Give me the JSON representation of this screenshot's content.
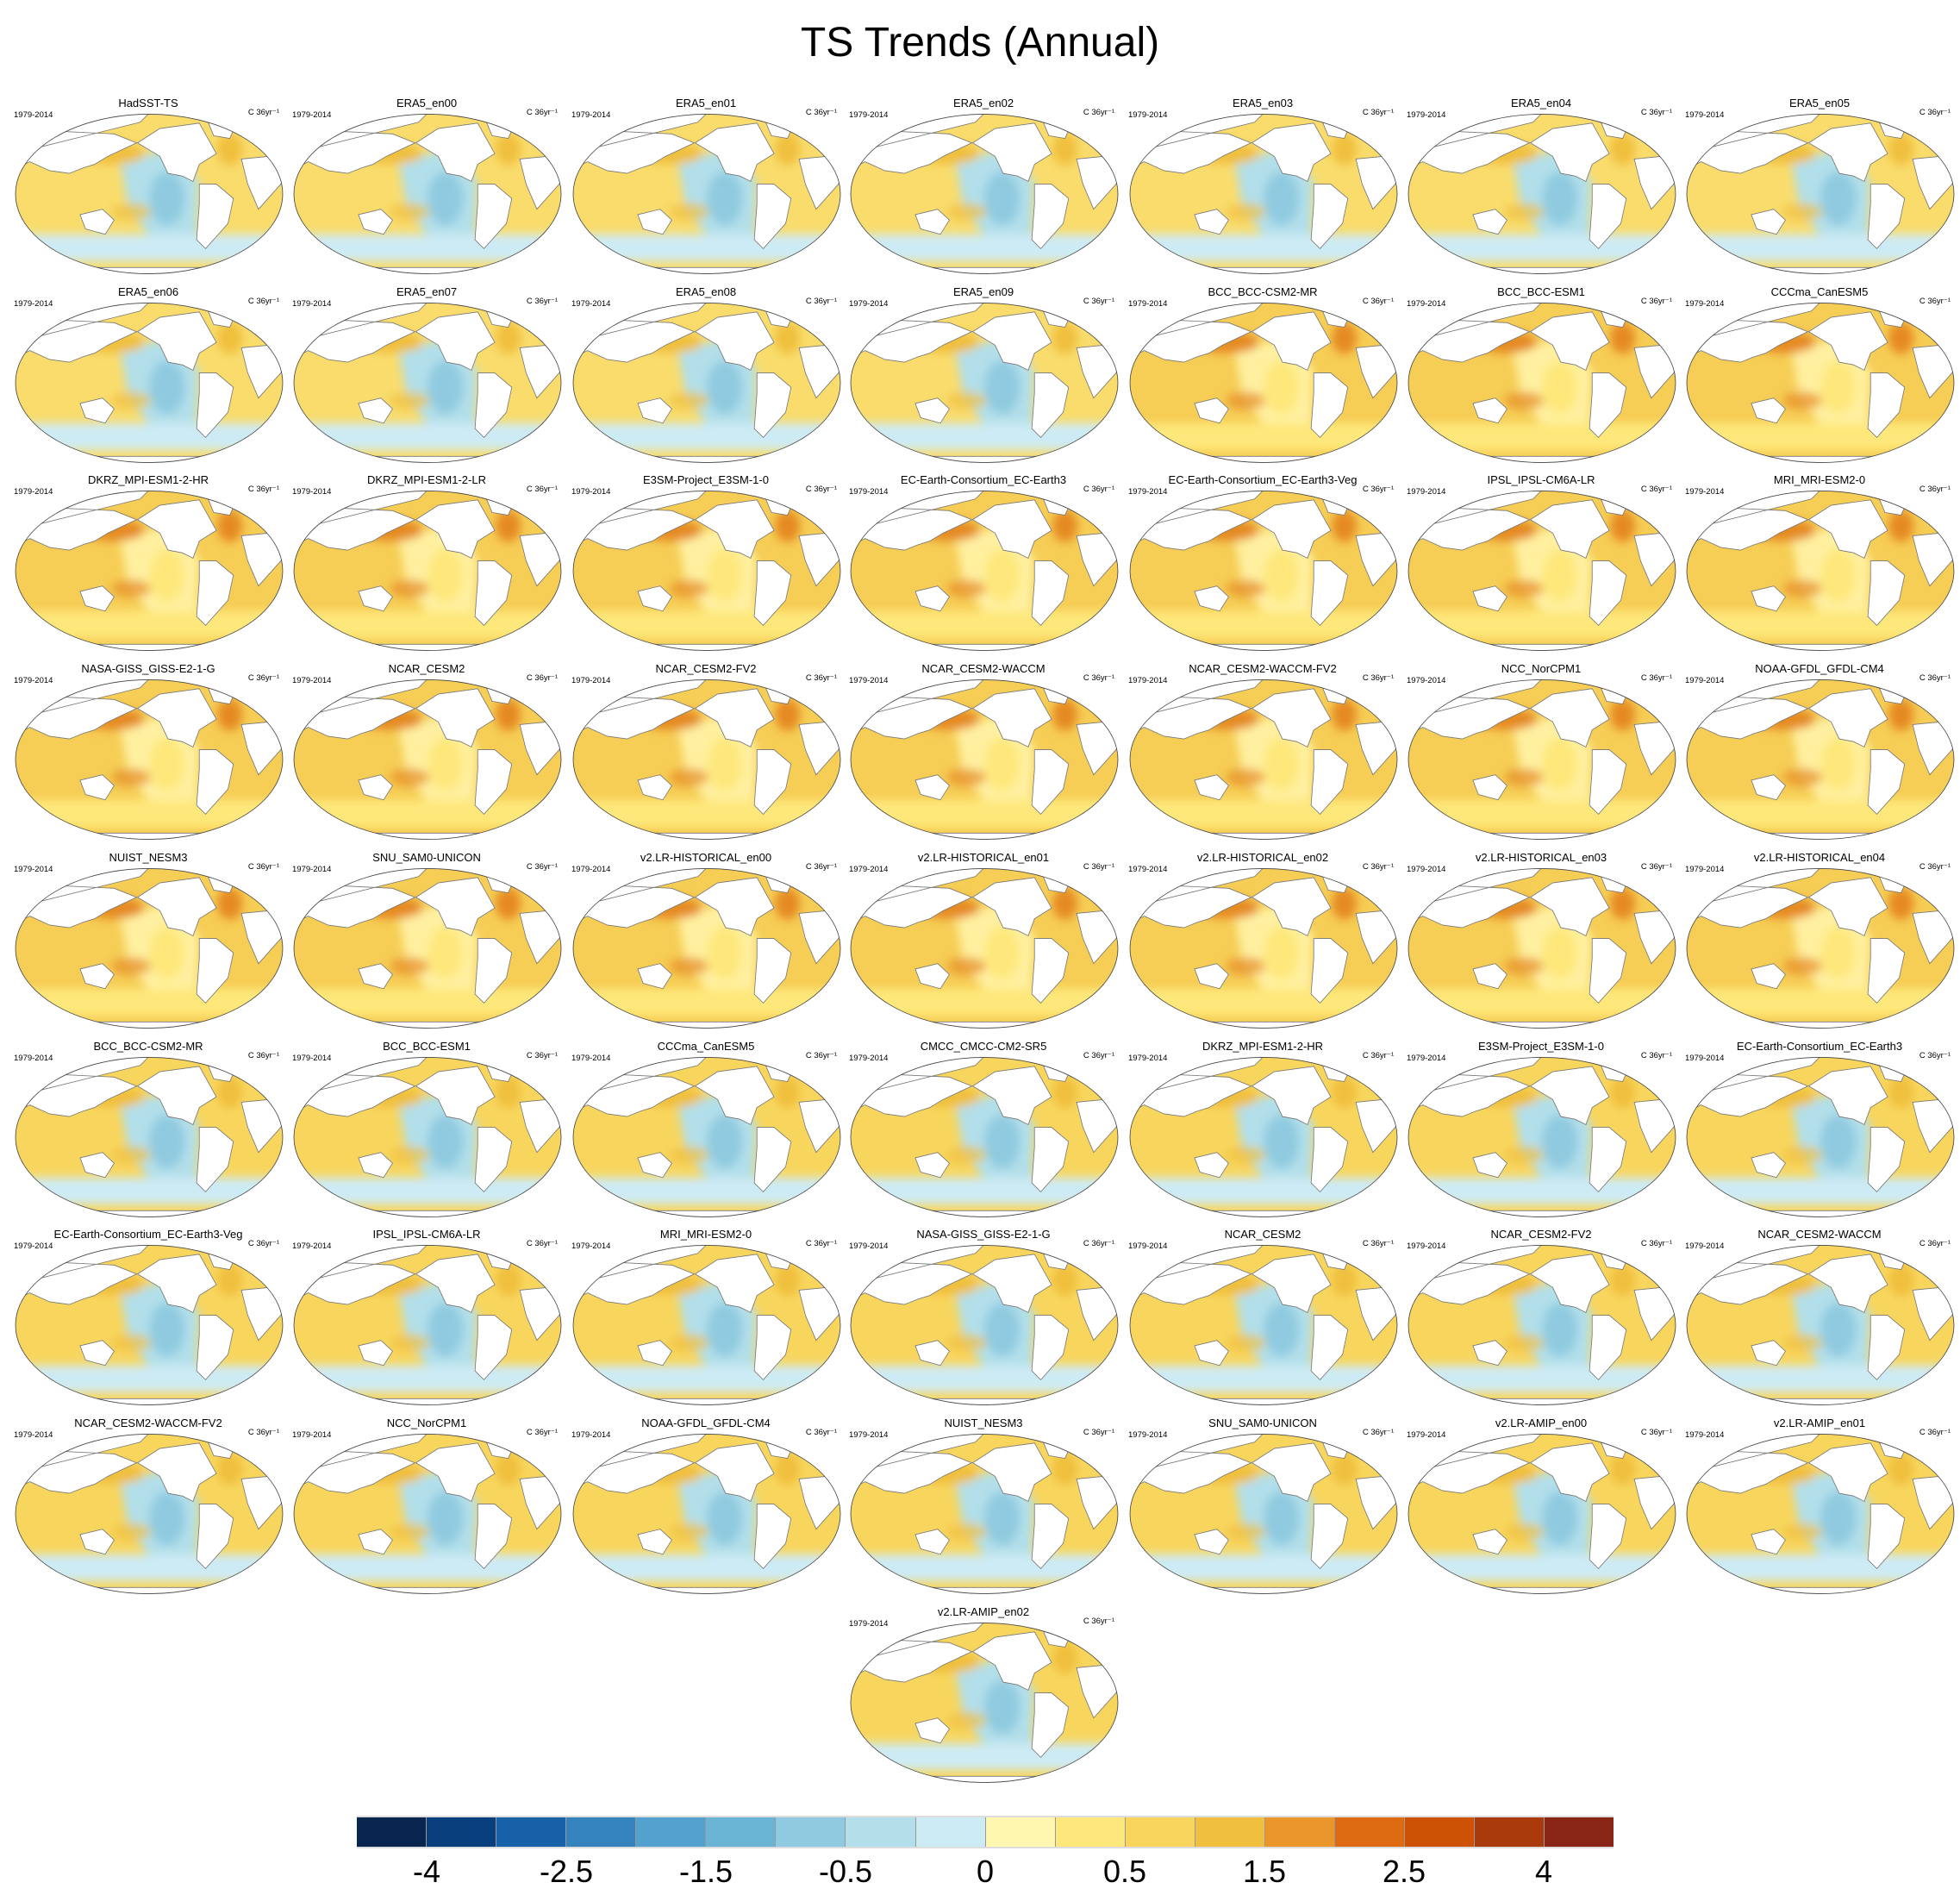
{
  "title": "TS Trends (Annual)",
  "panel_common": {
    "period": "1979-2014",
    "units": "C 36yr⁻¹"
  },
  "chart_data": {
    "type": "heatmap",
    "title": "TS Trends (Annual)",
    "projection": "Robinson-like global map centered on Pacific",
    "colorbar": {
      "colors": [
        "#08254f",
        "#0a3f7d",
        "#1661a8",
        "#3483bd",
        "#52a1cf",
        "#6ab4d6",
        "#8fcae0",
        "#b2dfea",
        "#cdebf5",
        "#fff7b0",
        "#fee87b",
        "#f8d65e",
        "#f0bf3e",
        "#ea962a",
        "#de6b12",
        "#cd5206",
        "#ab3a0b",
        "#892617"
      ],
      "tick_labels": [
        "-4",
        "-2.5",
        "-1.5",
        "-0.5",
        "0",
        "0.5",
        "1.5",
        "2.5",
        "4"
      ],
      "tick_boundaries": [
        1,
        3,
        5,
        7,
        9,
        11,
        13,
        15,
        17
      ]
    }
  },
  "panels": [
    {
      "name": "HadSST-TS",
      "style": "obs"
    },
    {
      "name": "ERA5_en00",
      "style": "obs"
    },
    {
      "name": "ERA5_en01",
      "style": "obs"
    },
    {
      "name": "ERA5_en02",
      "style": "obs"
    },
    {
      "name": "ERA5_en03",
      "style": "obs"
    },
    {
      "name": "ERA5_en04",
      "style": "obs"
    },
    {
      "name": "ERA5_en05",
      "style": "obs"
    },
    {
      "name": "ERA5_en06",
      "style": "obs"
    },
    {
      "name": "ERA5_en07",
      "style": "obs"
    },
    {
      "name": "ERA5_en08",
      "style": "obs"
    },
    {
      "name": "ERA5_en09",
      "style": "obs"
    },
    {
      "name": "BCC_BCC-CSM2-MR",
      "style": "hist"
    },
    {
      "name": "BCC_BCC-ESM1",
      "style": "hist"
    },
    {
      "name": "CCCma_CanESM5",
      "style": "hist"
    },
    {
      "name": "DKRZ_MPI-ESM1-2-HR",
      "style": "hist"
    },
    {
      "name": "DKRZ_MPI-ESM1-2-LR",
      "style": "hist"
    },
    {
      "name": "E3SM-Project_E3SM-1-0",
      "style": "hist"
    },
    {
      "name": "EC-Earth-Consortium_EC-Earth3",
      "style": "hist"
    },
    {
      "name": "EC-Earth-Consortium_EC-Earth3-Veg",
      "style": "hist"
    },
    {
      "name": "IPSL_IPSL-CM6A-LR",
      "style": "hist"
    },
    {
      "name": "MRI_MRI-ESM2-0",
      "style": "hist"
    },
    {
      "name": "NASA-GISS_GISS-E2-1-G",
      "style": "hist"
    },
    {
      "name": "NCAR_CESM2",
      "style": "hist"
    },
    {
      "name": "NCAR_CESM2-FV2",
      "style": "hist"
    },
    {
      "name": "NCAR_CESM2-WACCM",
      "style": "hist"
    },
    {
      "name": "NCAR_CESM2-WACCM-FV2",
      "style": "hist"
    },
    {
      "name": "NCC_NorCPM1",
      "style": "hist"
    },
    {
      "name": "NOAA-GFDL_GFDL-CM4",
      "style": "hist"
    },
    {
      "name": "NUIST_NESM3",
      "style": "hist"
    },
    {
      "name": "SNU_SAM0-UNICON",
      "style": "hist"
    },
    {
      "name": "v2.LR-HISTORICAL_en00",
      "style": "hist"
    },
    {
      "name": "v2.LR-HISTORICAL_en01",
      "style": "hist"
    },
    {
      "name": "v2.LR-HISTORICAL_en02",
      "style": "hist"
    },
    {
      "name": "v2.LR-HISTORICAL_en03",
      "style": "hist"
    },
    {
      "name": "v2.LR-HISTORICAL_en04",
      "style": "hist"
    },
    {
      "name": "BCC_BCC-CSM2-MR",
      "style": "amip"
    },
    {
      "name": "BCC_BCC-ESM1",
      "style": "amip"
    },
    {
      "name": "CCCma_CanESM5",
      "style": "amip"
    },
    {
      "name": "CMCC_CMCC-CM2-SR5",
      "style": "amip"
    },
    {
      "name": "DKRZ_MPI-ESM1-2-HR",
      "style": "amip"
    },
    {
      "name": "E3SM-Project_E3SM-1-0",
      "style": "amip"
    },
    {
      "name": "EC-Earth-Consortium_EC-Earth3",
      "style": "amip"
    },
    {
      "name": "EC-Earth-Consortium_EC-Earth3-Veg",
      "style": "amip"
    },
    {
      "name": "IPSL_IPSL-CM6A-LR",
      "style": "amip"
    },
    {
      "name": "MRI_MRI-ESM2-0",
      "style": "amip"
    },
    {
      "name": "NASA-GISS_GISS-E2-1-G",
      "style": "amip"
    },
    {
      "name": "NCAR_CESM2",
      "style": "amip"
    },
    {
      "name": "NCAR_CESM2-FV2",
      "style": "amip"
    },
    {
      "name": "NCAR_CESM2-WACCM",
      "style": "amip"
    },
    {
      "name": "NCAR_CESM2-WACCM-FV2",
      "style": "amip"
    },
    {
      "name": "NCC_NorCPM1",
      "style": "amip"
    },
    {
      "name": "NOAA-GFDL_GFDL-CM4",
      "style": "amip"
    },
    {
      "name": "NUIST_NESM3",
      "style": "amip"
    },
    {
      "name": "SNU_SAM0-UNICON",
      "style": "amip"
    },
    {
      "name": "v2.LR-AMIP_en00",
      "style": "amip"
    },
    {
      "name": "v2.LR-AMIP_en01",
      "style": "amip"
    },
    {
      "name": "v2.LR-AMIP_en02",
      "style": "amip"
    }
  ]
}
